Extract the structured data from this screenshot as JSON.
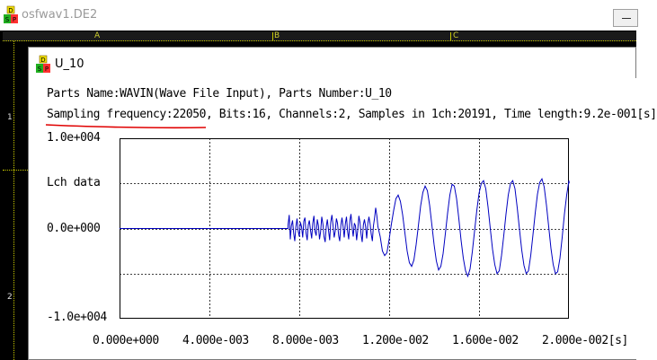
{
  "outer_window": {
    "title": "osfwav1.DE2",
    "icon_letters": [
      "D",
      "S",
      "P"
    ]
  },
  "sheet": {
    "columns": [
      "A",
      "B",
      "C"
    ],
    "rows": [
      "1",
      "2"
    ]
  },
  "child_window": {
    "title": "U_10",
    "icon_letters": [
      "D",
      "S",
      "P"
    ]
  },
  "info": {
    "parts_line": "Parts Name:WAVIN(Wave File Input), Parts Number:U_10",
    "sampling_line": "Sampling frequency:22050, Bits:16, Channels:2, Samples in 1ch:20191, Time length:9.2e-001[s]"
  },
  "annotation_color": "#e00000",
  "chart_data": {
    "type": "line",
    "series": [
      {
        "name": "Lch data",
        "color": "#0000c0",
        "points": [
          [
            0.0,
            0
          ],
          [
            0.0075,
            0
          ],
          [
            0.0075,
            400
          ],
          [
            0.00755,
            1500
          ],
          [
            0.0076,
            -1200
          ],
          [
            0.00765,
            300
          ],
          [
            0.0077,
            900
          ],
          [
            0.00775,
            -600
          ],
          [
            0.0078,
            -1400
          ],
          [
            0.00785,
            200
          ],
          [
            0.0079,
            1100
          ],
          [
            0.00795,
            -300
          ],
          [
            0.008,
            -900
          ],
          [
            0.00805,
            700
          ],
          [
            0.0081,
            200
          ],
          [
            0.00815,
            -1000
          ],
          [
            0.0082,
            800
          ],
          [
            0.00825,
            1200
          ],
          [
            0.0083,
            -500
          ],
          [
            0.00835,
            -1300
          ],
          [
            0.0084,
            400
          ],
          [
            0.00845,
            900
          ],
          [
            0.0085,
            -200
          ],
          [
            0.00855,
            -1100
          ],
          [
            0.0086,
            600
          ],
          [
            0.00865,
            1400
          ],
          [
            0.0087,
            -300
          ],
          [
            0.00875,
            -800
          ],
          [
            0.0088,
            1000
          ],
          [
            0.00885,
            300
          ],
          [
            0.0089,
            -1200
          ],
          [
            0.00895,
            -400
          ],
          [
            0.009,
            1300
          ],
          [
            0.00905,
            500
          ],
          [
            0.0091,
            -900
          ],
          [
            0.00915,
            -1500
          ],
          [
            0.0092,
            200
          ],
          [
            0.00925,
            1000
          ],
          [
            0.0093,
            -200
          ],
          [
            0.00935,
            -1300
          ],
          [
            0.0094,
            700
          ],
          [
            0.00945,
            1500
          ],
          [
            0.0095,
            400
          ],
          [
            0.00955,
            -1000
          ],
          [
            0.0096,
            -300
          ],
          [
            0.00965,
            1100
          ],
          [
            0.0097,
            600
          ],
          [
            0.00975,
            -800
          ],
          [
            0.0098,
            -1400
          ],
          [
            0.00985,
            300
          ],
          [
            0.0099,
            1200
          ],
          [
            0.00995,
            200
          ],
          [
            0.01,
            -1000
          ],
          [
            0.01005,
            500
          ],
          [
            0.0101,
            1300
          ],
          [
            0.01015,
            -300
          ],
          [
            0.0102,
            -1200
          ],
          [
            0.01025,
            900
          ],
          [
            0.0103,
            1600
          ],
          [
            0.01035,
            100
          ],
          [
            0.0104,
            -900
          ],
          [
            0.01045,
            600
          ],
          [
            0.0105,
            300
          ],
          [
            0.01055,
            -1300
          ],
          [
            0.0106,
            -200
          ],
          [
            0.01065,
            1400
          ],
          [
            0.0107,
            700
          ],
          [
            0.01075,
            -700
          ],
          [
            0.0108,
            -1500
          ],
          [
            0.01085,
            400
          ],
          [
            0.0109,
            1000
          ],
          [
            0.01095,
            200
          ],
          [
            0.011,
            -1100
          ],
          [
            0.01105,
            600
          ],
          [
            0.0111,
            1300
          ],
          [
            0.01115,
            500
          ],
          [
            0.0112,
            -600
          ],
          [
            0.01125,
            -1400
          ],
          [
            0.0113,
            300
          ],
          [
            0.01135,
            1200
          ],
          [
            0.0114,
            2300
          ],
          [
            0.01145,
            1400
          ],
          [
            0.0115,
            200
          ],
          [
            0.0116,
            -900
          ],
          [
            0.0117,
            -2500
          ],
          [
            0.0118,
            -3000
          ],
          [
            0.0119,
            -2700
          ],
          [
            0.012,
            -1200
          ],
          [
            0.0121,
            500
          ],
          [
            0.0122,
            2000
          ],
          [
            0.0123,
            3300
          ],
          [
            0.0124,
            3700
          ],
          [
            0.0125,
            3000
          ],
          [
            0.0126,
            1500
          ],
          [
            0.0127,
            -500
          ],
          [
            0.0128,
            -2500
          ],
          [
            0.0129,
            -3800
          ],
          [
            0.013,
            -4200
          ],
          [
            0.0131,
            -3500
          ],
          [
            0.0132,
            -1800
          ],
          [
            0.0133,
            300
          ],
          [
            0.0134,
            2500
          ],
          [
            0.0135,
            4000
          ],
          [
            0.0136,
            4700
          ],
          [
            0.0137,
            4200
          ],
          [
            0.0138,
            2600
          ],
          [
            0.0139,
            400
          ],
          [
            0.014,
            -1800
          ],
          [
            0.0141,
            -3600
          ],
          [
            0.0142,
            -4600
          ],
          [
            0.0143,
            -4200
          ],
          [
            0.0144,
            -2800
          ],
          [
            0.0145,
            -600
          ],
          [
            0.0146,
            1700
          ],
          [
            0.0147,
            3700
          ],
          [
            0.0148,
            4900
          ],
          [
            0.0149,
            4700
          ],
          [
            0.015,
            3300
          ],
          [
            0.0151,
            1100
          ],
          [
            0.0152,
            -1300
          ],
          [
            0.0153,
            -3300
          ],
          [
            0.0154,
            -4700
          ],
          [
            0.0155,
            -5300
          ],
          [
            0.0156,
            -4500
          ],
          [
            0.0157,
            -2600
          ],
          [
            0.0158,
            -300
          ],
          [
            0.0159,
            2000
          ],
          [
            0.016,
            3900
          ],
          [
            0.0161,
            5000
          ],
          [
            0.0162,
            5300
          ],
          [
            0.0163,
            4400
          ],
          [
            0.0164,
            2400
          ],
          [
            0.0165,
            0
          ],
          [
            0.0166,
            -2300
          ],
          [
            0.0167,
            -4000
          ],
          [
            0.0168,
            -5000
          ],
          [
            0.0169,
            -4700
          ],
          [
            0.017,
            -3000
          ],
          [
            0.0171,
            -800
          ],
          [
            0.0172,
            1600
          ],
          [
            0.0173,
            3700
          ],
          [
            0.0174,
            5000
          ],
          [
            0.0175,
            5300
          ],
          [
            0.0176,
            4400
          ],
          [
            0.0177,
            2300
          ],
          [
            0.0178,
            -100
          ],
          [
            0.0179,
            -2400
          ],
          [
            0.018,
            -4100
          ],
          [
            0.0181,
            -5000
          ],
          [
            0.0182,
            -4700
          ],
          [
            0.0183,
            -3000
          ],
          [
            0.0184,
            -700
          ],
          [
            0.0185,
            1700
          ],
          [
            0.0186,
            3800
          ],
          [
            0.0187,
            5100
          ],
          [
            0.0188,
            5500
          ],
          [
            0.0189,
            4600
          ],
          [
            0.019,
            2600
          ],
          [
            0.0191,
            200
          ],
          [
            0.0192,
            -2200
          ],
          [
            0.0193,
            -4000
          ],
          [
            0.0194,
            -5000
          ],
          [
            0.0195,
            -4800
          ],
          [
            0.0196,
            -3300
          ],
          [
            0.0197,
            -1000
          ],
          [
            0.0198,
            1600
          ],
          [
            0.0199,
            3700
          ],
          [
            0.02,
            5300
          ],
          [
            0.02001,
            5000
          ]
        ]
      }
    ],
    "xlim": [
      0,
      0.02
    ],
    "ylim": [
      -10000,
      10000
    ],
    "x_ticks": [
      "0.000e+000",
      "4.000e-003",
      "8.000e-003",
      "1.200e-002",
      "1.600e-002",
      "2.000e-002[s]"
    ],
    "y_labels": {
      "top": "1.0e+004",
      "series": "Lch data",
      "zero": "0.0e+000",
      "bottom": "-1.0e+004"
    },
    "grid": true
  }
}
